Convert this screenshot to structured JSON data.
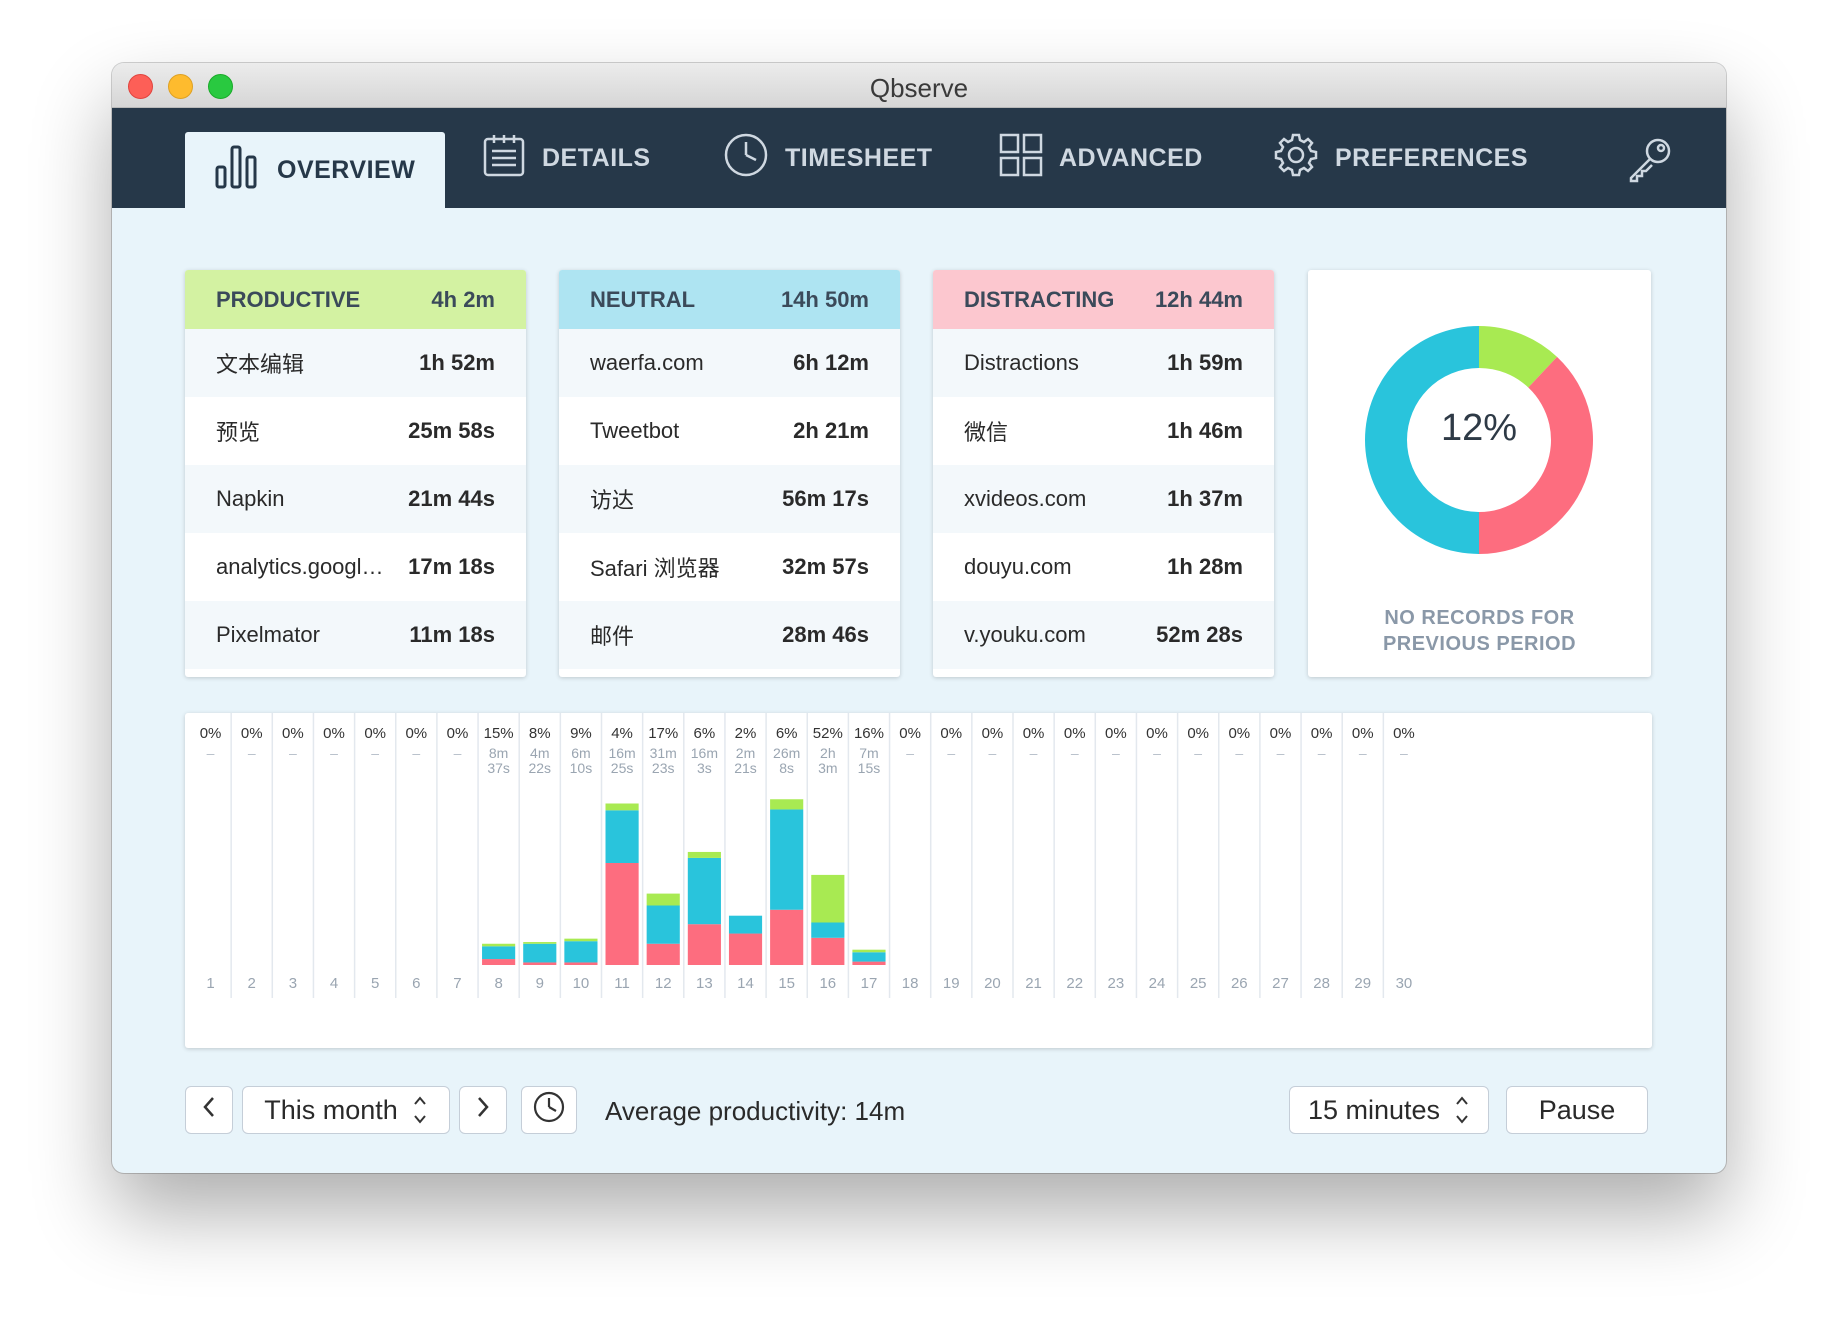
{
  "window": {
    "title": "Qbserve"
  },
  "nav": {
    "tabs": [
      {
        "label": "OVERVIEW",
        "icon": "bar-chart-icon",
        "active": true
      },
      {
        "label": "DETAILS",
        "icon": "list-icon"
      },
      {
        "label": "TIMESHEET",
        "icon": "clock-icon"
      },
      {
        "label": "ADVANCED",
        "icon": "grid-icon"
      },
      {
        "label": "PREFERENCES",
        "icon": "gear-icon"
      }
    ],
    "key_icon": "key-icon"
  },
  "cards": [
    {
      "title": "PRODUCTIVE",
      "total": "4h 2m",
      "color": "#d3f2a2",
      "items": [
        {
          "name": "文本编辑",
          "value": "1h 52m"
        },
        {
          "name": "预览",
          "value": "25m 58s"
        },
        {
          "name": "Napkin",
          "value": "21m 44s"
        },
        {
          "name": "analytics.googl…",
          "value": "17m 18s"
        },
        {
          "name": "Pixelmator",
          "value": "11m 18s"
        }
      ]
    },
    {
      "title": "NEUTRAL",
      "total": "14h 50m",
      "color": "#aee4f2",
      "items": [
        {
          "name": "waerfa.com",
          "value": "6h 12m"
        },
        {
          "name": "Tweetbot",
          "value": "2h 21m"
        },
        {
          "name": "访达",
          "value": "56m 17s"
        },
        {
          "name": "Safari 浏览器",
          "value": "32m 57s"
        },
        {
          "name": "邮件",
          "value": "28m 46s"
        }
      ]
    },
    {
      "title": "DISTRACTING",
      "total": "12h 44m",
      "color": "#fcc7cf",
      "items": [
        {
          "name": "Distractions",
          "value": "1h 59m"
        },
        {
          "name": "微信",
          "value": "1h 46m"
        },
        {
          "name": "xvideos.com",
          "value": "1h 37m"
        },
        {
          "name": "douyu.com",
          "value": "1h 28m"
        },
        {
          "name": "v.youku.com",
          "value": "52m 28s"
        }
      ]
    }
  ],
  "summary": {
    "percent": "12%",
    "no_records_line1": "NO RECORDS FOR",
    "no_records_line2": "PREVIOUS PERIOD",
    "donut": {
      "productive": 0.12,
      "distracting": 0.38,
      "neutral": 0.5
    }
  },
  "colors": {
    "productive": "#a8ea52",
    "neutral": "#29c4dc",
    "distracting": "#fd6d7f",
    "nav": "#263849"
  },
  "chart_data": {
    "type": "bar",
    "stacked": true,
    "x": [
      1,
      2,
      3,
      4,
      5,
      6,
      7,
      8,
      9,
      10,
      11,
      12,
      13,
      14,
      15,
      16,
      17,
      18,
      19,
      20,
      21,
      22,
      23,
      24,
      25,
      26,
      27,
      28,
      29,
      30
    ],
    "pct_labels": [
      "0%",
      "0%",
      "0%",
      "0%",
      "0%",
      "0%",
      "0%",
      "15%",
      "8%",
      "9%",
      "4%",
      "17%",
      "6%",
      "2%",
      "6%",
      "52%",
      "16%",
      "0%",
      "0%",
      "0%",
      "0%",
      "0%",
      "0%",
      "0%",
      "0%",
      "0%",
      "0%",
      "0%",
      "0%",
      "0%"
    ],
    "time_labels": [
      "–",
      "–",
      "–",
      "–",
      "–",
      "–",
      "–",
      [
        "8m",
        "37s"
      ],
      [
        "4m",
        "22s"
      ],
      [
        "6m",
        "10s"
      ],
      [
        "16m",
        "25s"
      ],
      [
        "31m",
        "23s"
      ],
      [
        "16m",
        "3s"
      ],
      [
        "2m",
        "21s"
      ],
      [
        "26m",
        "8s"
      ],
      [
        "2h",
        "3m"
      ],
      [
        "7m",
        "15s"
      ],
      "–",
      "–",
      "–",
      "–",
      "–",
      "–",
      "–",
      "–",
      "–",
      "–",
      "–",
      "–",
      "–"
    ],
    "series": [
      {
        "name": "distracting",
        "color": "#fd6d7f",
        "values": [
          0,
          0,
          0,
          0,
          0,
          0,
          0,
          7,
          3,
          3,
          120,
          25,
          48,
          37,
          65,
          32,
          4,
          0,
          0,
          0,
          0,
          0,
          0,
          0,
          0,
          0,
          0,
          0,
          0,
          0
        ]
      },
      {
        "name": "neutral",
        "color": "#29c4dc",
        "values": [
          0,
          0,
          0,
          0,
          0,
          0,
          0,
          15,
          22,
          25,
          62,
          45,
          78,
          21,
          118,
          18,
          11,
          0,
          0,
          0,
          0,
          0,
          0,
          0,
          0,
          0,
          0,
          0,
          0,
          0
        ]
      },
      {
        "name": "productive",
        "color": "#a8ea52",
        "values": [
          0,
          0,
          0,
          0,
          0,
          0,
          0,
          3,
          2,
          3,
          8,
          14,
          7,
          0,
          12,
          56,
          3,
          0,
          0,
          0,
          0,
          0,
          0,
          0,
          0,
          0,
          0,
          0,
          0,
          0
        ]
      }
    ],
    "ylim": [
      0,
      200
    ]
  },
  "toolbar": {
    "period": "This month",
    "average": "Average productivity: 14m",
    "interval": "15 minutes",
    "pause": "Pause"
  }
}
